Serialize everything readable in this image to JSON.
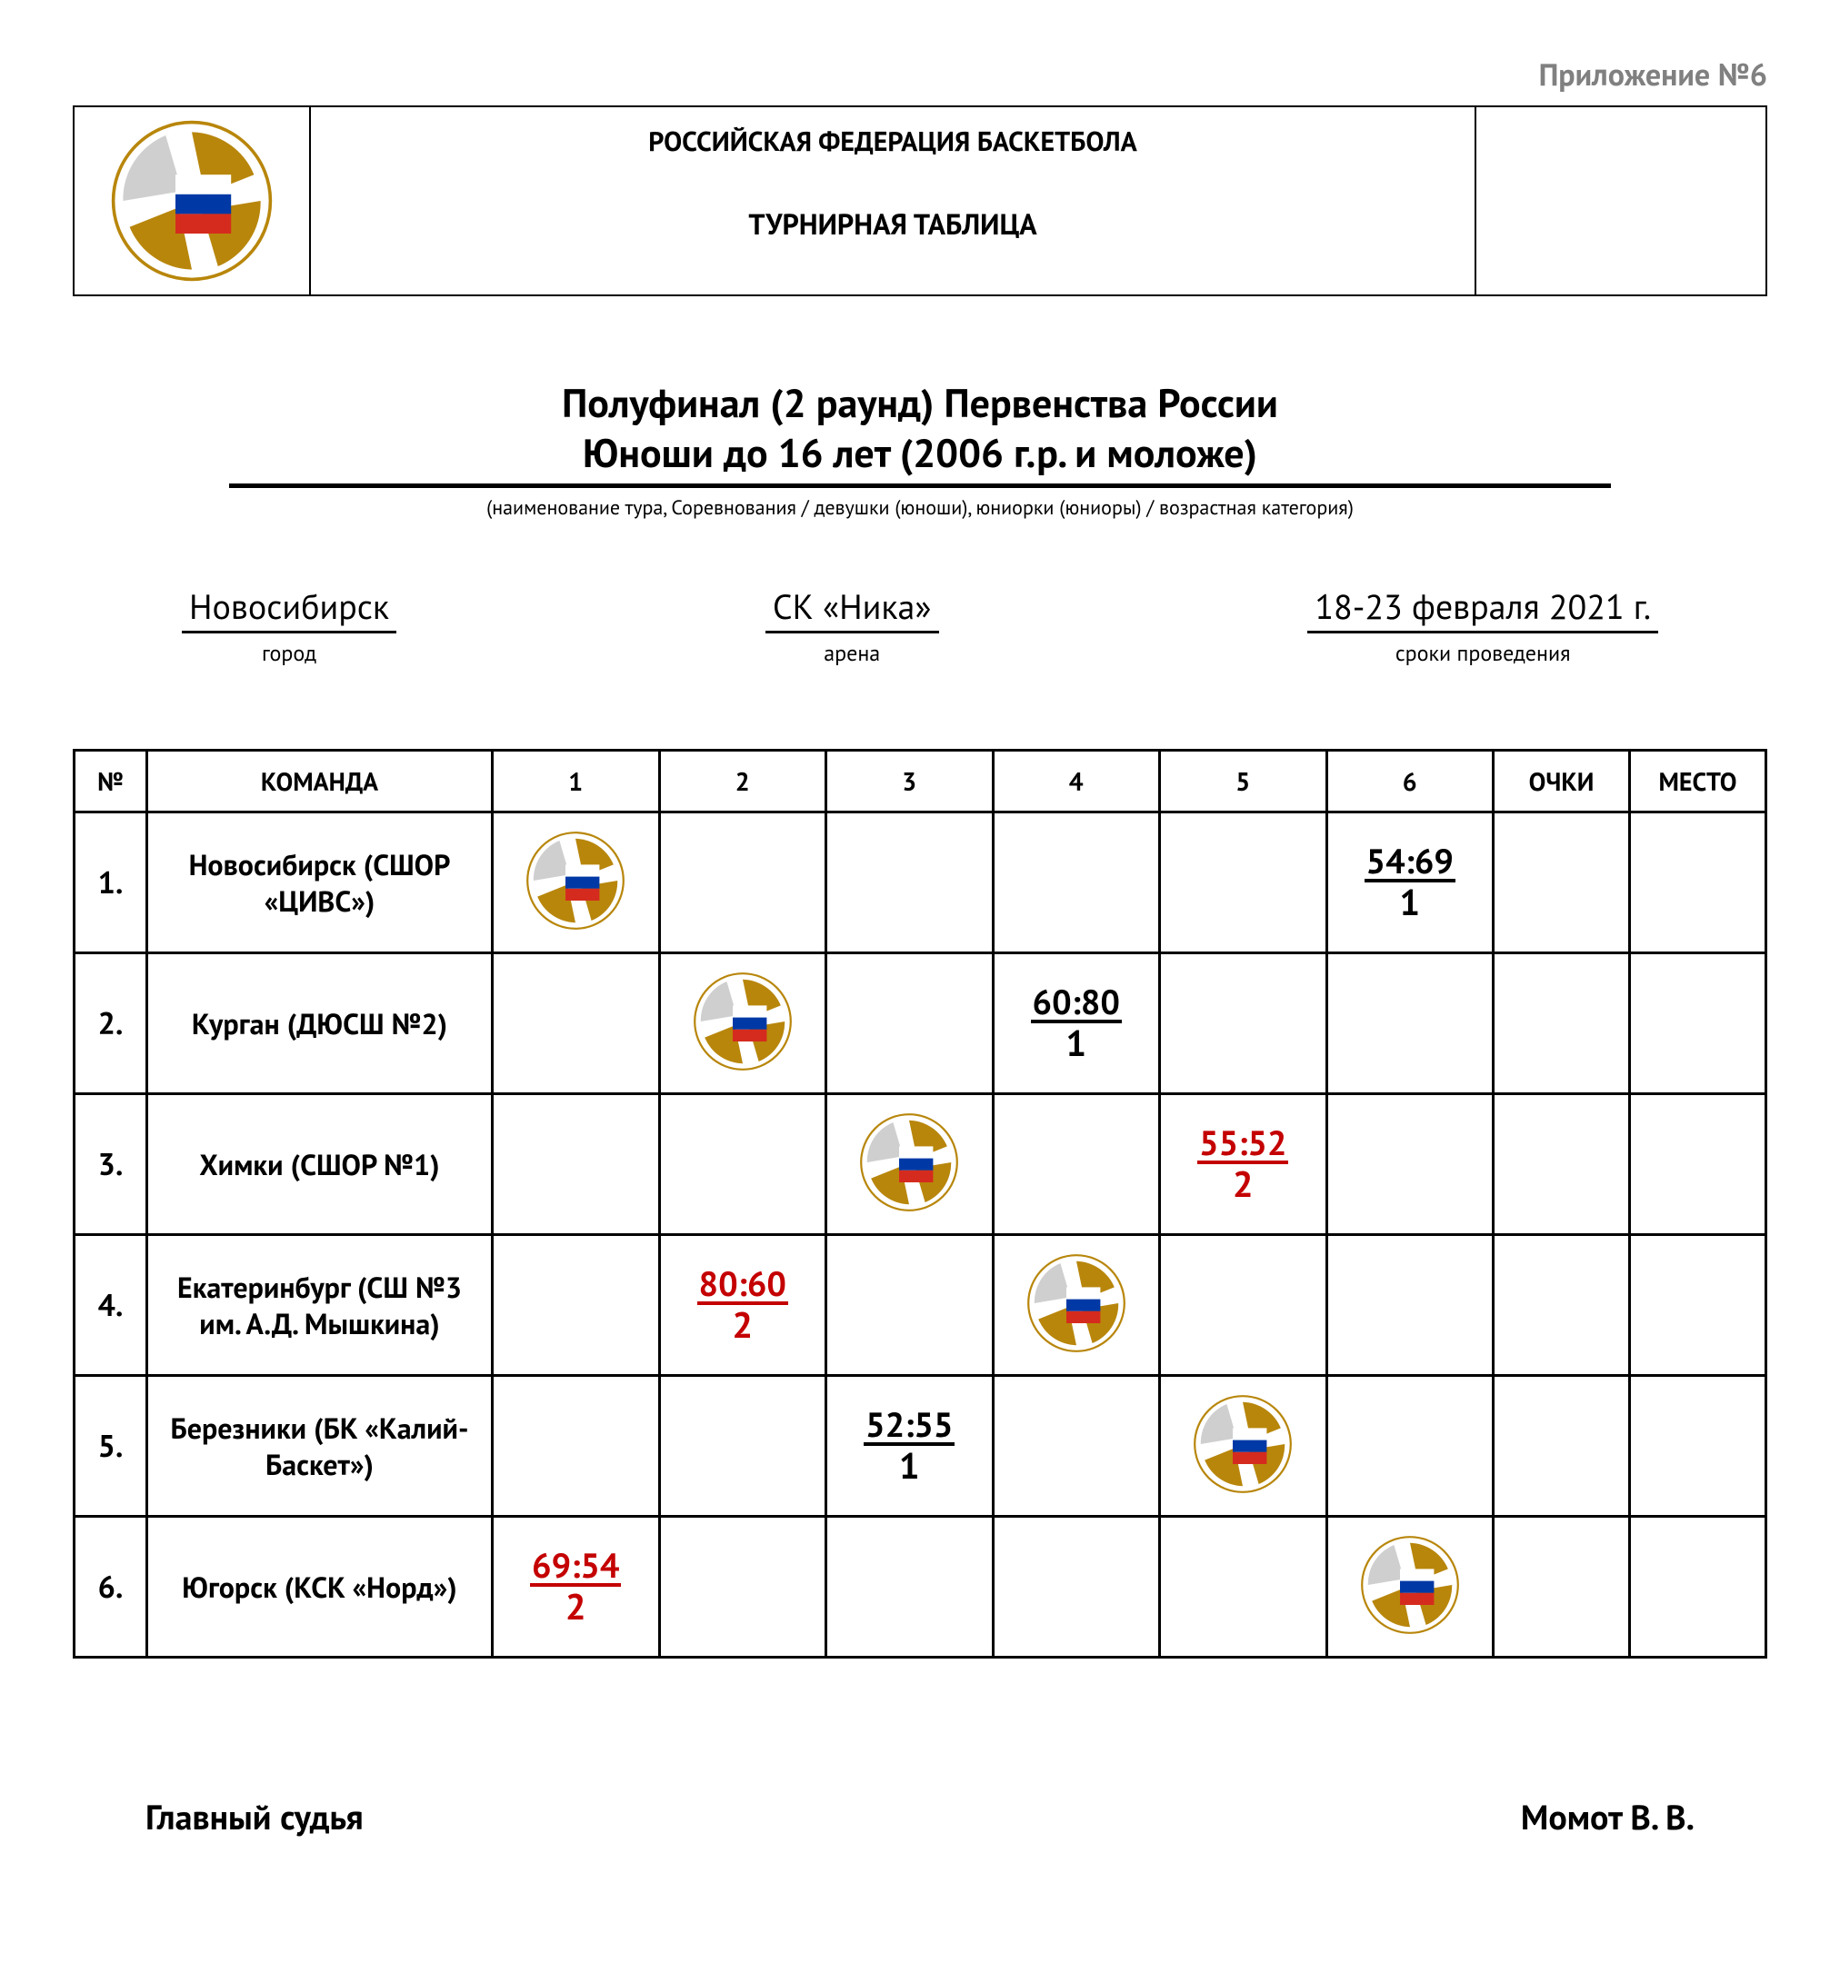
{
  "appendix": "Приложение №6",
  "header": {
    "federation": "РОССИЙСКАЯ ФЕДЕРАЦИЯ БАСКЕТБОЛА",
    "subtitle": "ТУРНИРНАЯ ТАБЛИЦА"
  },
  "event": {
    "line1": "Полуфинал (2 раунд) Первенства России",
    "line2": "Юноши до 16 лет (2006 г.р. и моложе)",
    "note": "(наименование тура, Соревнования / девушки (юноши), юниорки (юниоры) / возрастная категория)"
  },
  "meta": {
    "city": {
      "value": "Новосибирск",
      "label": "город"
    },
    "arena": {
      "value": "СК «Ника»",
      "label": "арена"
    },
    "dates": {
      "value": "18-23 февраля 2021 г.",
      "label": "сроки проведения"
    }
  },
  "columns": {
    "num": "№",
    "team": "КОМАНДА",
    "c1": "1",
    "c2": "2",
    "c3": "3",
    "c4": "4",
    "c5": "5",
    "c6": "6",
    "pts": "ОЧКИ",
    "place": "МЕСТО"
  },
  "colors": {
    "win": "#c40000",
    "loss": "#000000",
    "logo_blue": "#0039a6",
    "logo_red": "#d52b1e",
    "logo_gold": "#b8860b",
    "logo_gray": "#cfcfcf"
  },
  "teams": [
    {
      "num": "1.",
      "name": "Новосибирск (СШОР «ЦИВС»)"
    },
    {
      "num": "2.",
      "name": "Курган (ДЮСШ №2)"
    },
    {
      "num": "3.",
      "name": "Химки (СШОР №1)"
    },
    {
      "num": "4.",
      "name": "Екатеринбург (СШ №3 им. А.Д. Мышкина)"
    },
    {
      "num": "5.",
      "name": "Березники (БК «Калий-Баскет»)"
    },
    {
      "num": "6.",
      "name": "Югорск (КСК «Норд»)"
    }
  ],
  "results": {
    "r1": {
      "c6": {
        "score": "54:69",
        "pts": "1",
        "outcome": "loss"
      }
    },
    "r2": {
      "c4": {
        "score": "60:80",
        "pts": "1",
        "outcome": "loss"
      }
    },
    "r3": {
      "c5": {
        "score": "55:52",
        "pts": "2",
        "outcome": "win"
      }
    },
    "r4": {
      "c2": {
        "score": "80:60",
        "pts": "2",
        "outcome": "win"
      }
    },
    "r5": {
      "c3": {
        "score": "52:55",
        "pts": "1",
        "outcome": "loss"
      }
    },
    "r6": {
      "c1": {
        "score": "69:54",
        "pts": "2",
        "outcome": "win"
      }
    }
  },
  "footer": {
    "role": "Главный судья",
    "name": "Момот В. В."
  },
  "logo_sizes": {
    "header": 180,
    "cell": 110
  }
}
